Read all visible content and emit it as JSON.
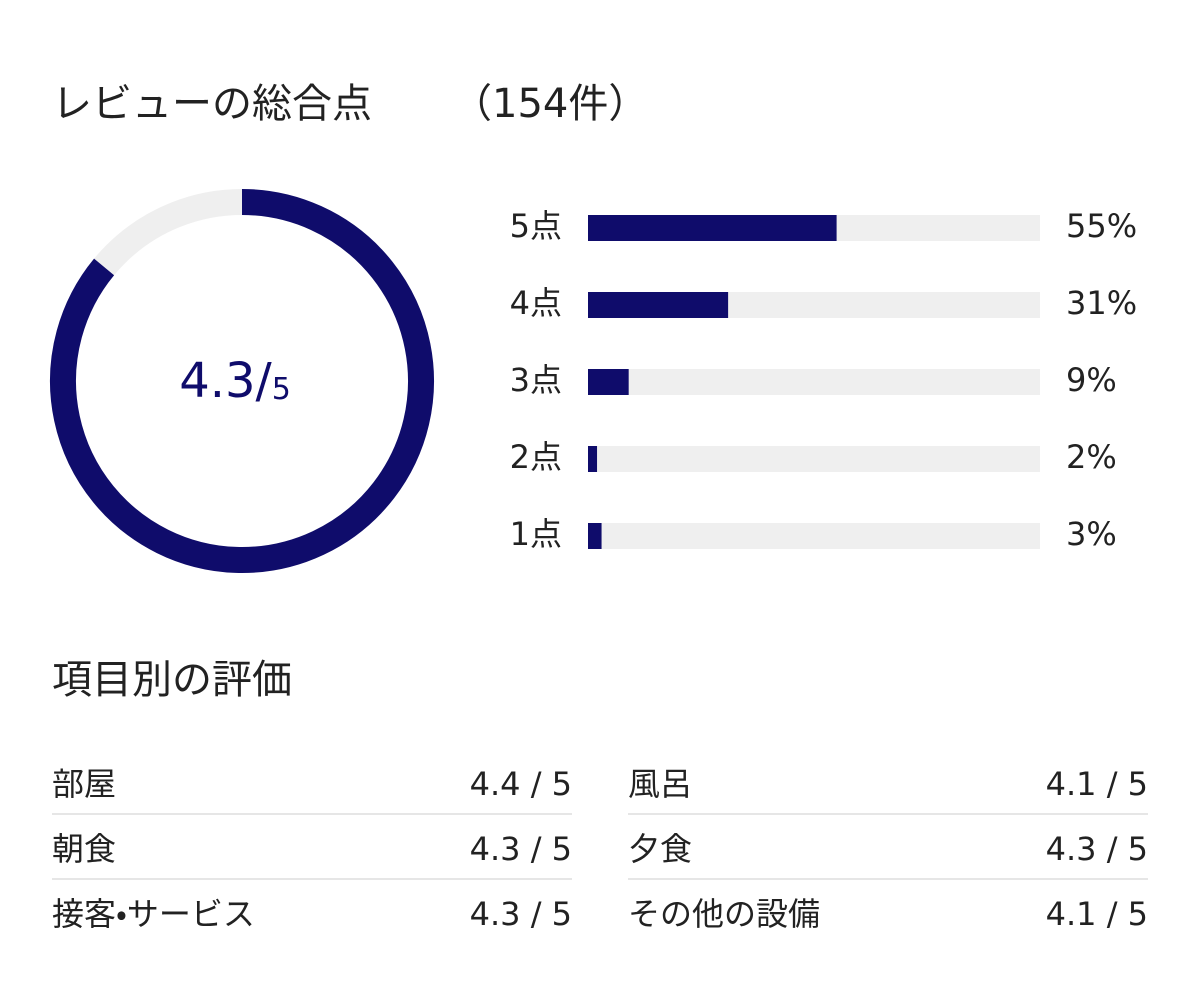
{
  "header": {
    "title": "レビューの総合点",
    "count": "（154件）"
  },
  "chart_data": [
    {
      "type": "donut",
      "value": 4.3,
      "separator": "/",
      "max": 5,
      "color": "#0f0c6b",
      "track_color": "#efefef"
    },
    {
      "type": "bar",
      "orientation": "horizontal",
      "categories": [
        "5点",
        "4点",
        "3点",
        "2点",
        "1点"
      ],
      "values": [
        55,
        31,
        9,
        2,
        3
      ],
      "value_labels": [
        "55%",
        "31%",
        "9%",
        "2%",
        "3%"
      ],
      "xlim": [
        0,
        100
      ],
      "color": "#0f0c6b",
      "track_color": "#efefef"
    }
  ],
  "ratings": {
    "title": "項目別の評価",
    "items": [
      {
        "label": "部屋",
        "score": "4.4 / 5"
      },
      {
        "label": "風呂",
        "score": "4.1 / 5"
      },
      {
        "label": "朝食",
        "score": "4.3 / 5"
      },
      {
        "label": "夕食",
        "score": "4.3 / 5"
      },
      {
        "label": "接客・サービス",
        "score": "4.3 / 5"
      },
      {
        "label": "その他の設備",
        "score": "4.1 / 5"
      }
    ]
  }
}
